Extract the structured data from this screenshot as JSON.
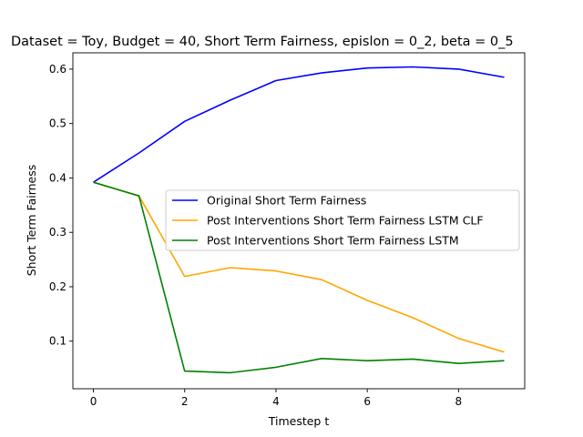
{
  "chart_data": {
    "type": "line",
    "title": "Dataset = Toy, Budget = 40, Short Term Fairness, epislon = 0_2, beta = 0_5",
    "xlabel": "Timestep t",
    "ylabel": "Short Term Fairness",
    "xlim": [
      -0.45,
      9.45
    ],
    "ylim": [
      0.0125,
      0.63
    ],
    "x": [
      0,
      1,
      2,
      3,
      4,
      5,
      6,
      7,
      8,
      9
    ],
    "xticks": [
      0,
      2,
      4,
      6,
      8
    ],
    "yticks": [
      0.1,
      0.2,
      0.3,
      0.4,
      0.5,
      0.6
    ],
    "ytick_labels": [
      "0.1",
      "0.2",
      "0.3",
      "0.4",
      "0.5",
      "0.6"
    ],
    "grid": false,
    "legend_position": "center-right",
    "series": [
      {
        "name": "Original Short Term Fairness",
        "color": "#0000ff",
        "values": [
          0.392,
          0.446,
          0.504,
          0.543,
          0.579,
          0.593,
          0.602,
          0.604,
          0.6,
          0.585
        ]
      },
      {
        "name": "Post Interventions Short Term Fairness LSTM CLF",
        "color": "#ffa500",
        "values": [
          0.392,
          0.367,
          0.219,
          0.235,
          0.229,
          0.213,
          0.175,
          0.143,
          0.105,
          0.08
        ]
      },
      {
        "name": "Post Interventions Short Term Fairness LSTM",
        "color": "#008000",
        "values": [
          0.392,
          0.367,
          0.045,
          0.042,
          0.052,
          0.068,
          0.064,
          0.067,
          0.059,
          0.064
        ]
      }
    ]
  }
}
